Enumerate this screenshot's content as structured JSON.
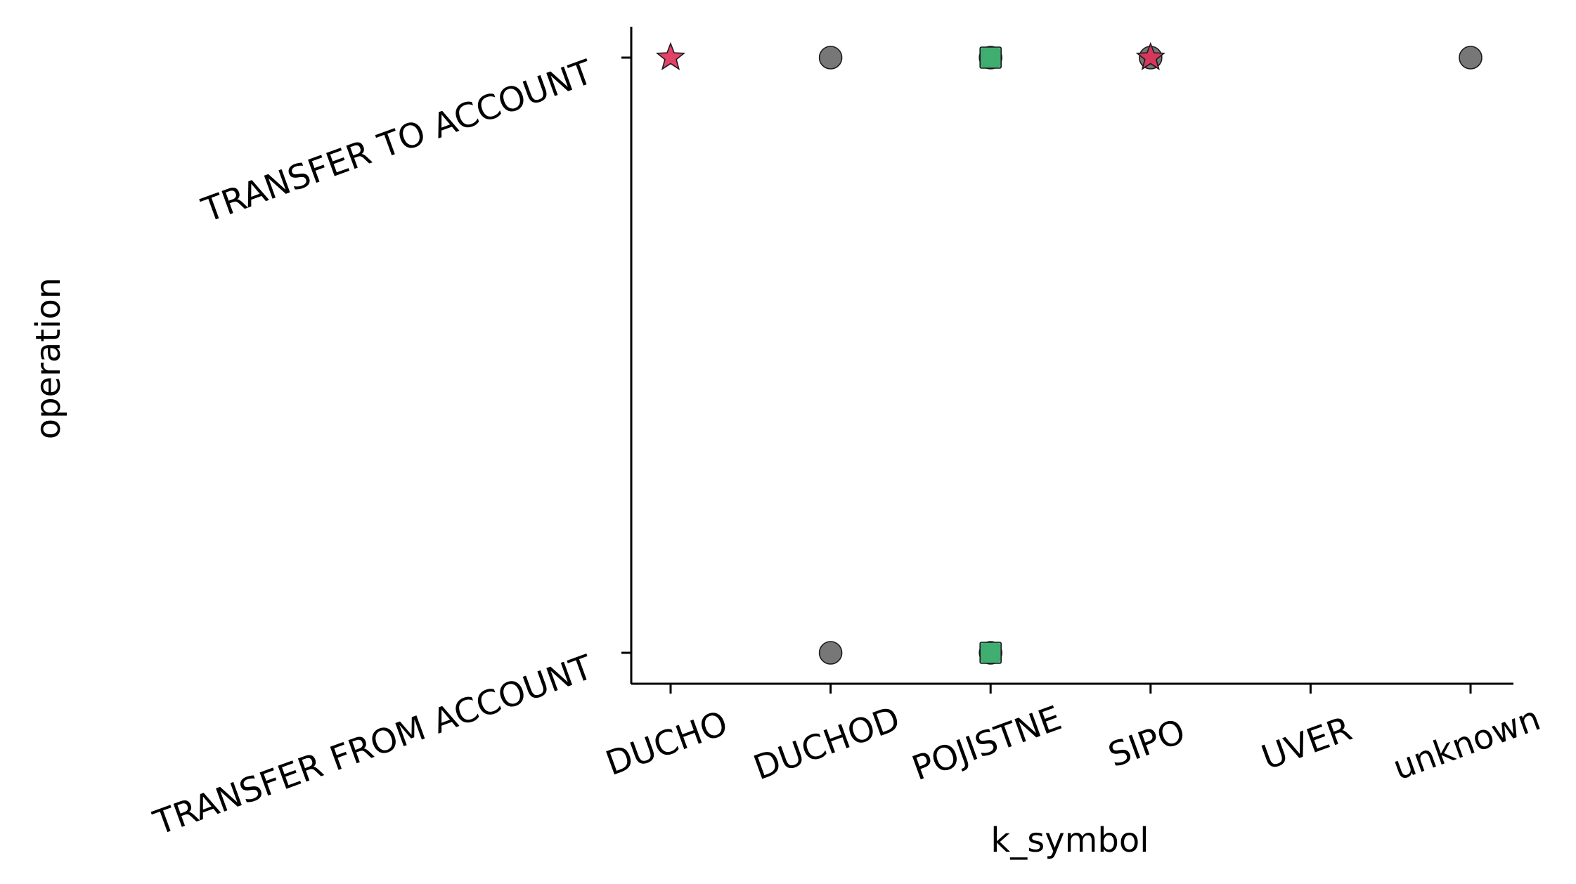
{
  "chart_data": {
    "type": "scatter",
    "title": "",
    "xlabel": "k_symbol",
    "ylabel": "operation",
    "x_categories": [
      "DUCHO",
      "DUCHOD",
      "POJISTNE",
      "SIPO",
      "UVER",
      "unknown"
    ],
    "y_categories": [
      "TRANSFER FROM ACCOUNT",
      "TRANSFER TO ACCOUNT"
    ],
    "grid": false,
    "legend": "none",
    "series": [
      {
        "marker": "circle",
        "color": "#6b6b6b",
        "points": [
          {
            "x": "DUCHOD",
            "y": "TRANSFER TO ACCOUNT"
          },
          {
            "x": "DUCHOD",
            "y": "TRANSFER FROM ACCOUNT"
          },
          {
            "x": "POJISTNE",
            "y": "TRANSFER TO ACCOUNT"
          },
          {
            "x": "POJISTNE",
            "y": "TRANSFER FROM ACCOUNT"
          },
          {
            "x": "SIPO",
            "y": "TRANSFER TO ACCOUNT"
          },
          {
            "x": "unknown",
            "y": "TRANSFER TO ACCOUNT"
          }
        ]
      },
      {
        "marker": "square",
        "color": "#3cb371",
        "points": [
          {
            "x": "POJISTNE",
            "y": "TRANSFER TO ACCOUNT"
          },
          {
            "x": "POJISTNE",
            "y": "TRANSFER FROM ACCOUNT"
          }
        ]
      },
      {
        "marker": "star",
        "color": "#e0325a",
        "points": [
          {
            "x": "DUCHO",
            "y": "TRANSFER TO ACCOUNT"
          },
          {
            "x": "SIPO",
            "y": "TRANSFER TO ACCOUNT"
          }
        ]
      }
    ]
  }
}
